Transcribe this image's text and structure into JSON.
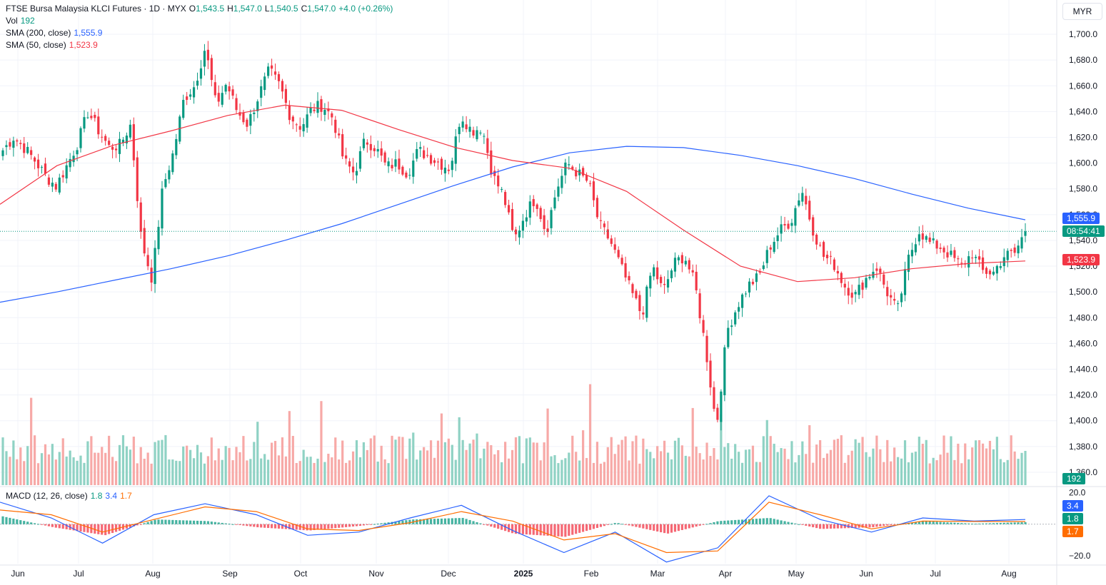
{
  "header": {
    "symbol": "FTSE Bursa Malaysia KLCI Futures · 1D · MYX",
    "o_label": "O",
    "o_value": "1,543.5",
    "h_label": "H",
    "h_value": "1,547.0",
    "l_label": "L",
    "l_value": "1,540.5",
    "c_label": "C",
    "c_value": "1,547.0",
    "change": "+4.0 (+0.26%)",
    "vol_label": "Vol",
    "vol_value": "192",
    "sma200_label": "SMA (200, close)",
    "sma200_value": "1,555.9",
    "sma50_label": "SMA (50, close)",
    "sma50_value": "1,523.9",
    "macd_label": "MACD (12, 26, close)",
    "macd_hist": "1.8",
    "macd_line": "3.4",
    "macd_signal": "1.7"
  },
  "currency": "MYR",
  "price_tags": {
    "sma200": "1,555.9",
    "countdown": "08:54:41",
    "sma50": "1,523.9",
    "volume": "192",
    "macd_line": "3.4",
    "macd_hist": "1.8",
    "macd_signal": "1.7"
  },
  "colors": {
    "up": "#089981",
    "down": "#f23645",
    "sma200": "#2962ff",
    "sma50": "#f23645",
    "macd": "#2962ff",
    "signal": "#ff6d00",
    "vol_up": "#8fd2c4",
    "vol_down": "#f7a9a7"
  },
  "chart_data": {
    "type": "candlestick",
    "price_axis": {
      "ticks": [
        1360,
        1380,
        1400,
        1420,
        1440,
        1460,
        1480,
        1500,
        1520,
        1540,
        1560,
        1580,
        1600,
        1620,
        1640,
        1660,
        1680,
        1700
      ],
      "ylim": [
        1350,
        1710
      ]
    },
    "macd_axis": {
      "ticks": [
        20,
        -20
      ],
      "ylim": [
        -25,
        23
      ]
    },
    "x_labels": [
      "Jun",
      "Jul",
      "Aug",
      "Sep",
      "Oct",
      "Nov",
      "Dec",
      "2025",
      "Feb",
      "Mar",
      "Apr",
      "May",
      "Jun",
      "Jul",
      "Aug"
    ],
    "current_price": 1547.0,
    "anchors": [
      1610,
      1620,
      1612,
      1602,
      1590,
      1582,
      1598,
      1615,
      1640,
      1625,
      1612,
      1614,
      1630,
      1540,
      1510,
      1580,
      1608,
      1650,
      1660,
      1690,
      1645,
      1662,
      1640,
      1630,
      1652,
      1672,
      1660,
      1636,
      1628,
      1642,
      1645,
      1635,
      1602,
      1592,
      1618,
      1612,
      1597,
      1600,
      1592,
      1610,
      1605,
      1600,
      1596,
      1638,
      1625,
      1628,
      1590,
      1575,
      1540,
      1560,
      1573,
      1546,
      1580,
      1600,
      1592,
      1585,
      1552,
      1540,
      1520,
      1500,
      1482,
      1520,
      1500,
      1522,
      1528,
      1505,
      1455,
      1395,
      1470,
      1490,
      1505,
      1512,
      1535,
      1548,
      1555,
      1580,
      1550,
      1528,
      1522,
      1505,
      1497,
      1510,
      1520,
      1500,
      1485,
      1525,
      1548,
      1538,
      1535,
      1528,
      1520,
      1530,
      1516,
      1515,
      1528,
      1530,
      1547
    ],
    "volume": {
      "last": 192,
      "ylim": [
        0,
        700
      ]
    },
    "sma200": [
      1492,
      1500,
      1509,
      1518,
      1528,
      1540,
      1553,
      1568,
      1583,
      1597,
      1608,
      1613,
      1612,
      1606,
      1598,
      1588,
      1576,
      1565,
      1556
    ],
    "sma50": [
      1568,
      1598,
      1614,
      1625,
      1637,
      1645,
      1641,
      1626,
      1612,
      1602,
      1596,
      1578,
      1548,
      1520,
      1508,
      1511,
      1518,
      1522,
      1524
    ],
    "macd_line_values": [
      14,
      4,
      -12,
      6,
      13,
      6,
      -7,
      -5,
      4,
      12,
      -4,
      -18,
      -5,
      -24,
      -15,
      18,
      3,
      -5,
      4,
      2,
      3
    ],
    "macd_signal_values": [
      9,
      6,
      -5,
      3,
      11,
      8,
      -3,
      -4,
      1,
      8,
      2,
      -10,
      -6,
      -18,
      -17,
      14,
      6,
      -3,
      2,
      1.7,
      1.7
    ]
  }
}
